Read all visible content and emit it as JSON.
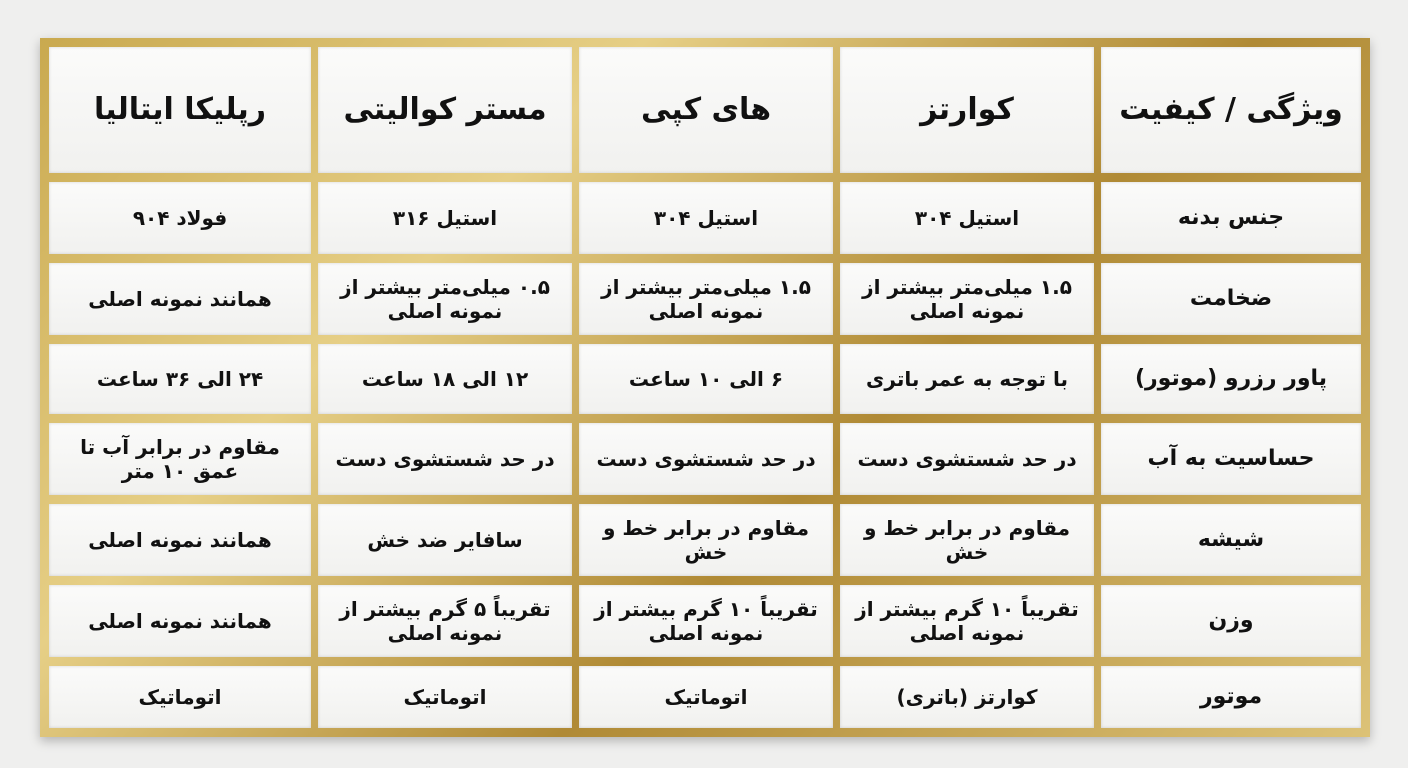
{
  "table": {
    "headers": [
      "ویژگی / کیفیت",
      "کوارتز",
      "های کپی",
      "مستر کوالیتی",
      "رپلیکا ایتالیا"
    ],
    "rows": [
      [
        "جنس بدنه",
        "استیل ۳۰۴",
        "استیل ۳۰۴",
        "استیل ۳۱۶",
        "فولاد ۹۰۴"
      ],
      [
        "ضخامت",
        "۱.۵ میلی‌متر بیشتر از نمونه اصلی",
        "۱.۵ میلی‌متر بیشتر از نمونه اصلی",
        "۰.۵ میلی‌متر بیشتر از نمونه اصلی",
        "همانند نمونه اصلی"
      ],
      [
        "پاور رزرو (موتور)",
        "با توجه به عمر باتری",
        "۶ الی ۱۰ ساعت",
        "۱۲ الی ۱۸ ساعت",
        "۲۴ الی ۳۶ ساعت"
      ],
      [
        "حساسیت به آب",
        "در حد شستشوی دست",
        "در حد شستشوی دست",
        "در حد شستشوی دست",
        "مقاوم در برابر آب تا عمق ۱۰ متر"
      ],
      [
        "شیشه",
        "مقاوم در برابر خط و خش",
        "مقاوم در برابر خط و خش",
        "سافایر ضد خش",
        "همانند نمونه اصلی"
      ],
      [
        "وزن",
        "تقریباً ۱۰ گرم بیشتر از نمونه اصلی",
        "تقریباً ۱۰ گرم بیشتر از نمونه اصلی",
        "تقریباً ۵ گرم بیشتر از نمونه اصلی",
        "همانند نمونه اصلی"
      ],
      [
        "موتور",
        "کوارتز (باتری)",
        "اتوماتیک",
        "اتوماتیک",
        "اتوماتیک"
      ]
    ]
  },
  "colors": {
    "frame_gold": "#c9a94f",
    "cell_bg": "#f7f7f6",
    "text": "#111111"
  }
}
